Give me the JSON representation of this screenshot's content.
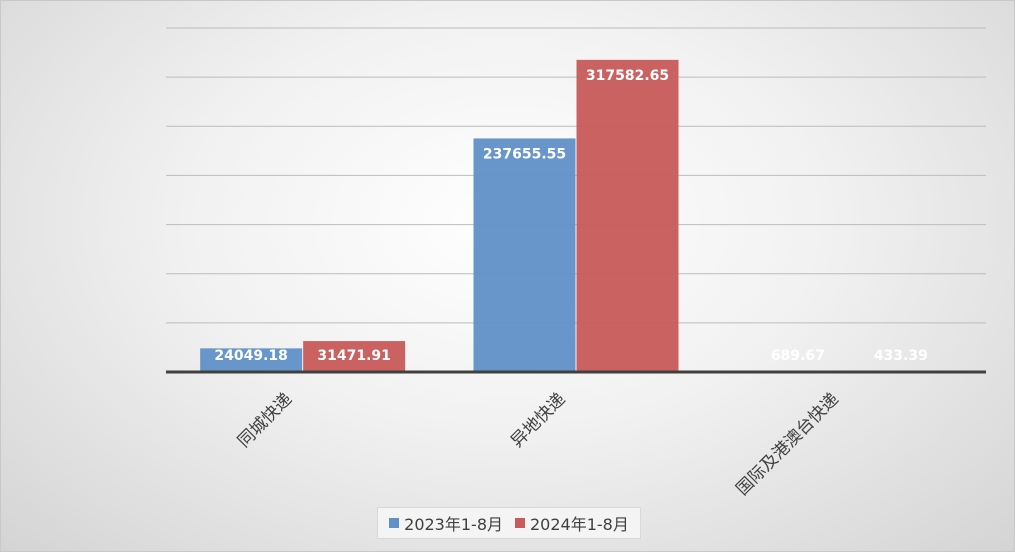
{
  "chart_data": {
    "type": "bar",
    "title": "",
    "xlabel": "",
    "ylabel": "",
    "categories": [
      "同城快递",
      "异地快递",
      "国际及港澳台快递"
    ],
    "series": [
      {
        "name": "2023年1-8月",
        "color": "#6090c8",
        "values": [
          24049.18,
          237655.55,
          689.67
        ],
        "labels": [
          "24049.18",
          "237655.55",
          "689.67"
        ]
      },
      {
        "name": "2024年1-8月",
        "color": "#c85a5a",
        "values": [
          31471.91,
          317582.65,
          433.39
        ],
        "labels": [
          "31471.91",
          "317582.65",
          "433.39"
        ]
      }
    ],
    "ylim": [
      0,
      350000
    ],
    "grid": true,
    "legend_position": "bottom"
  }
}
